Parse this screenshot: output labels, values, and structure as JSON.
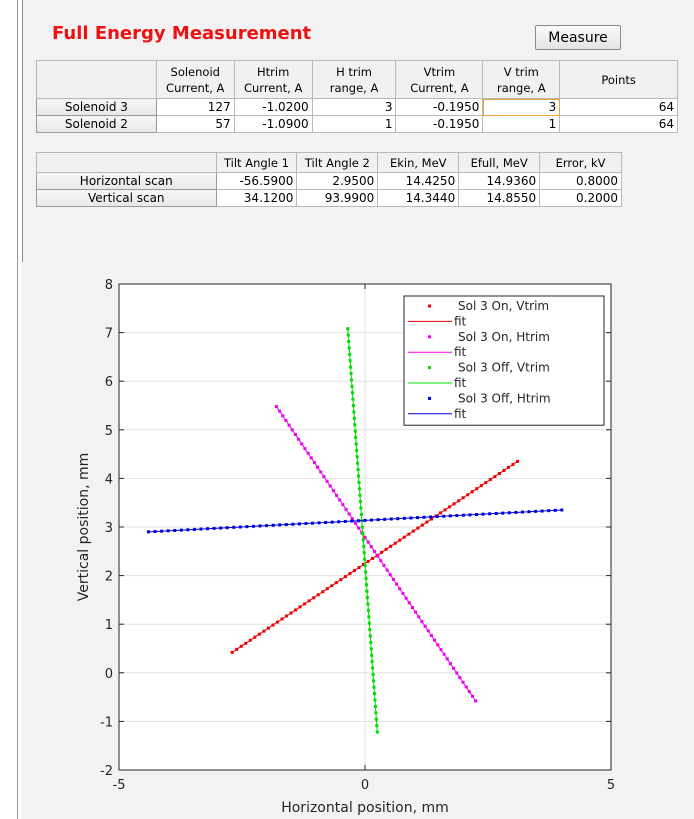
{
  "title": "Full Energy Measurement",
  "measure_button": "Measure",
  "table1": {
    "headers": [
      "Solenoid\nCurrent, A",
      "Htrim\nCurrent, A",
      "H trim\nrange, A",
      "Vtrim\nCurrent, A",
      "V trim\nrange, A",
      "Points"
    ],
    "rows": [
      {
        "name": "Solenoid 3",
        "cells": [
          "127",
          "-1.0200",
          "3",
          "-0.1950",
          "3",
          "64"
        ]
      },
      {
        "name": "Solenoid 2",
        "cells": [
          "57",
          "-1.0900",
          "1",
          "-0.1950",
          "1",
          "64"
        ]
      }
    ]
  },
  "table2": {
    "headers": [
      "Tilt Angle 1",
      "Tilt Angle 2",
      "Ekin, MeV",
      "Efull, MeV",
      "Error, kV"
    ],
    "rows": [
      {
        "name": "Horizontal scan",
        "cells": [
          "-56.5900",
          "2.9500",
          "14.4250",
          "14.9360",
          "0.8000"
        ]
      },
      {
        "name": "Vertical scan",
        "cells": [
          "34.1200",
          "93.9900",
          "14.3440",
          "14.8550",
          "0.2000"
        ]
      }
    ]
  },
  "chart_data": {
    "type": "scatter",
    "title": "",
    "xlabel": "Horizontal position, mm",
    "ylabel": "Vertical position, mm",
    "xlim": [
      -5,
      5
    ],
    "ylim": [
      -2,
      8
    ],
    "xticks": [
      -5,
      0,
      5
    ],
    "yticks": [
      -2,
      -1,
      0,
      1,
      2,
      3,
      4,
      5,
      6,
      7,
      8
    ],
    "grid": true,
    "legend_position": "top-right",
    "legend": [
      "Sol 3 On, Vtrim",
      "fit",
      "Sol 3 On, Htrim",
      "fit",
      "Sol 3 Off, Vtrim",
      "fit",
      "Sol 3 Off, Htrim",
      "fit"
    ],
    "series": [
      {
        "name": "Sol 3 On, Vtrim",
        "color": "#ee0000",
        "points": 64,
        "start": [
          -2.7,
          0.42
        ],
        "end": [
          3.1,
          4.35
        ]
      },
      {
        "name": "Sol 3 On, Htrim",
        "color": "#ee00ee",
        "points": 64,
        "start": [
          -1.8,
          5.48
        ],
        "end": [
          2.25,
          -0.58
        ]
      },
      {
        "name": "Sol 3 Off, Vtrim",
        "color": "#00dd00",
        "points": 64,
        "start": [
          -0.35,
          7.08
        ],
        "end": [
          0.25,
          -1.22
        ]
      },
      {
        "name": "Sol 3 Off, Htrim",
        "color": "#0000dd",
        "points": 64,
        "start": [
          -4.4,
          2.9
        ],
        "end": [
          4.0,
          3.35
        ]
      }
    ]
  }
}
